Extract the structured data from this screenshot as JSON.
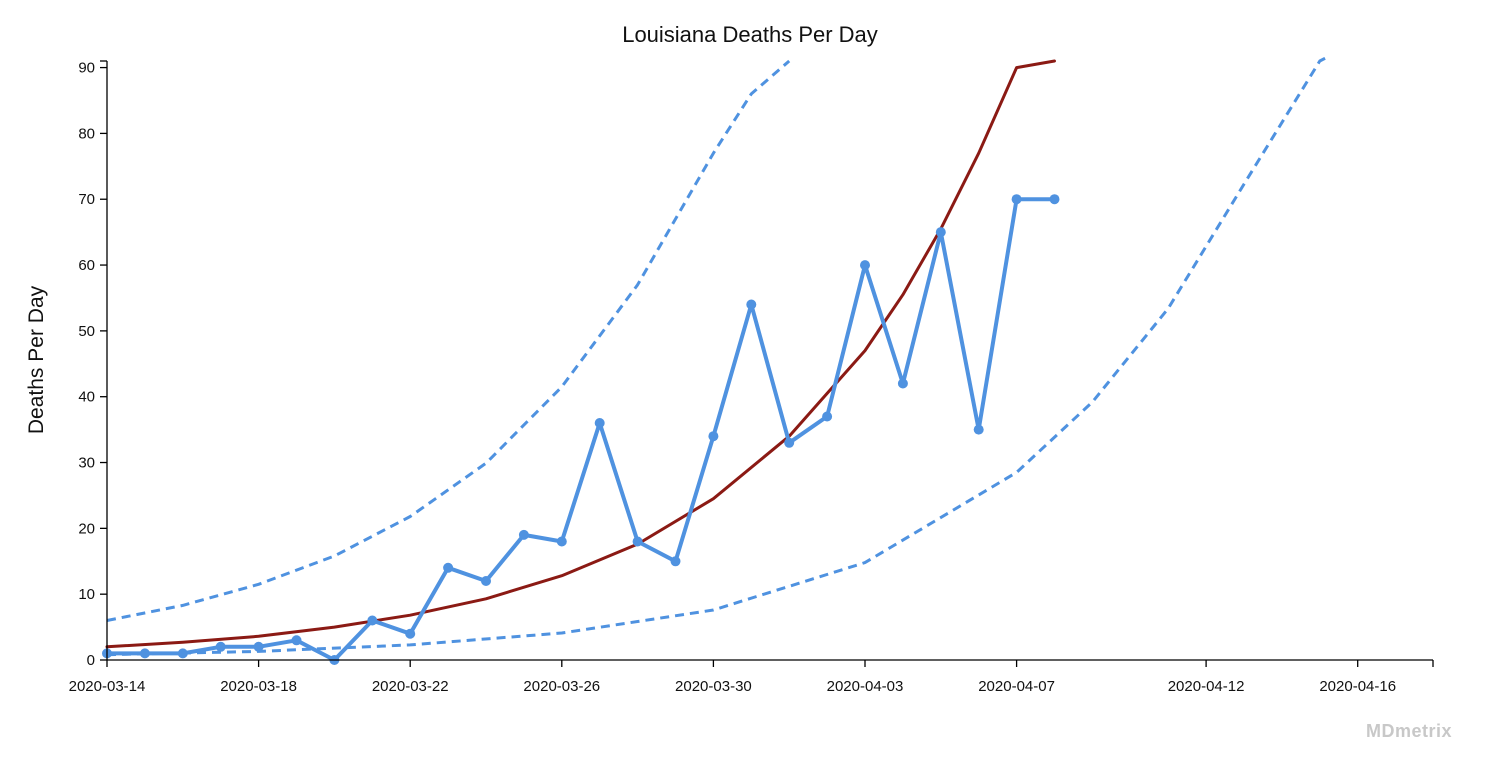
{
  "chart_data": {
    "type": "line",
    "title": "Louisiana Deaths Per Day",
    "xlabel": "",
    "ylabel": "Deaths Per Day",
    "x_ticks": [
      "2020-03-14",
      "2020-03-18",
      "2020-03-22",
      "2020-03-26",
      "2020-03-30",
      "2020-04-03",
      "2020-04-07",
      "2020-04-12",
      "2020-04-16"
    ],
    "y_ticks": [
      0,
      10,
      20,
      30,
      40,
      50,
      60,
      70,
      80,
      90
    ],
    "xlim": [
      "2020-03-14",
      "2020-04-18"
    ],
    "ylim": [
      0,
      91
    ],
    "grid": false,
    "series": [
      {
        "role": "actual",
        "color": "#4f92e0",
        "style": "solid-with-markers",
        "x": [
          "2020-03-14",
          "2020-03-15",
          "2020-03-16",
          "2020-03-17",
          "2020-03-18",
          "2020-03-19",
          "2020-03-20",
          "2020-03-21",
          "2020-03-22",
          "2020-03-23",
          "2020-03-24",
          "2020-03-25",
          "2020-03-26",
          "2020-03-27",
          "2020-03-28",
          "2020-03-29",
          "2020-03-30",
          "2020-03-31",
          "2020-04-01",
          "2020-04-02",
          "2020-04-03",
          "2020-04-04",
          "2020-04-05",
          "2020-04-06",
          "2020-04-07",
          "2020-04-08"
        ],
        "y": [
          1,
          1,
          1,
          2,
          2,
          3,
          0,
          6,
          4,
          14,
          12,
          19,
          18,
          36,
          18,
          15,
          34,
          54,
          33,
          37,
          60,
          42,
          65,
          35,
          70,
          70
        ]
      },
      {
        "role": "fit",
        "color": "#8b1a14",
        "style": "solid",
        "x": [
          "2020-03-14",
          "2020-03-16",
          "2020-03-18",
          "2020-03-20",
          "2020-03-22",
          "2020-03-24",
          "2020-03-26",
          "2020-03-28",
          "2020-03-30",
          "2020-04-01",
          "2020-04-03",
          "2020-04-04",
          "2020-04-05",
          "2020-04-06",
          "2020-04-07",
          "2020-04-08"
        ],
        "y": [
          2,
          2.7,
          3.6,
          5,
          6.8,
          9.3,
          12.8,
          17.6,
          24.5,
          34,
          47,
          55.5,
          65.5,
          77,
          90,
          91
        ]
      },
      {
        "role": "upper-bound",
        "color": "#4f92e0",
        "style": "dashed",
        "x": [
          "2020-03-14",
          "2020-03-16",
          "2020-03-18",
          "2020-03-20",
          "2020-03-22",
          "2020-03-24",
          "2020-03-26",
          "2020-03-28",
          "2020-03-30",
          "2020-03-31",
          "2020-04-01"
        ],
        "y": [
          6,
          8.3,
          11.5,
          15.8,
          21.8,
          29.9,
          41.5,
          57,
          77,
          86,
          91
        ]
      },
      {
        "role": "lower-bound",
        "color": "#4f92e0",
        "style": "dashed",
        "x": [
          "2020-03-14",
          "2020-03-18",
          "2020-03-22",
          "2020-03-26",
          "2020-03-30",
          "2020-04-03",
          "2020-04-07",
          "2020-04-09",
          "2020-04-11",
          "2020-04-13",
          "2020-04-15",
          "2020-04-16"
        ],
        "y": [
          0.8,
          1.3,
          2.3,
          4.1,
          7.6,
          14.8,
          28.5,
          39.2,
          53.4,
          72.3,
          91,
          94
        ]
      }
    ]
  },
  "brand": "MDmetrix"
}
